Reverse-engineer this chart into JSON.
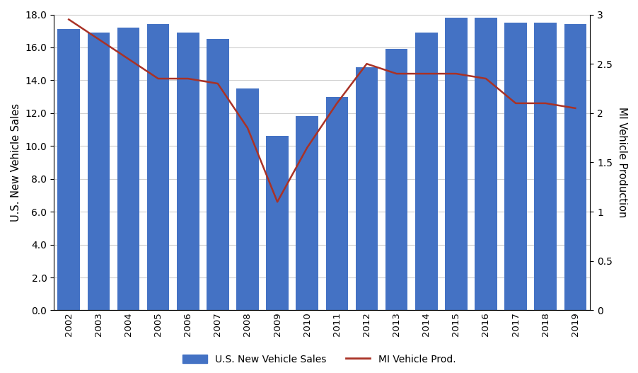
{
  "years": [
    "2002",
    "2003",
    "2004",
    "2005",
    "2006",
    "2007",
    "2008",
    "2009",
    "2010",
    "2011",
    "2012",
    "2013",
    "2014",
    "2015",
    "2016",
    "2017",
    "2018",
    "2019"
  ],
  "us_sales": [
    17.1,
    16.9,
    17.2,
    17.4,
    16.9,
    16.5,
    13.5,
    10.6,
    11.8,
    13.0,
    14.8,
    15.9,
    16.9,
    17.8,
    17.8,
    17.5,
    17.5,
    17.4
  ],
  "mi_prod": [
    2.95,
    2.75,
    2.55,
    2.35,
    2.35,
    2.3,
    1.85,
    1.1,
    1.65,
    2.1,
    2.5,
    2.4,
    2.4,
    2.4,
    2.35,
    2.1,
    2.1,
    2.05
  ],
  "bar_color": "#4472C4",
  "line_color": "#A93226",
  "ylabel_left": "U.S. New Vehicle Sales",
  "ylabel_right": "MI Vehicle Production",
  "ylim_left": [
    0,
    18.0
  ],
  "ylim_right": [
    0,
    3.0
  ],
  "yticks_left": [
    0.0,
    2.0,
    4.0,
    6.0,
    8.0,
    10.0,
    12.0,
    14.0,
    16.0,
    18.0
  ],
  "yticks_right": [
    0,
    0.5,
    1.0,
    1.5,
    2.0,
    2.5,
    3.0
  ],
  "legend_bar_label": "U.S. New Vehicle Sales",
  "legend_line_label": "MI Vehicle Prod.",
  "background_color": "#ffffff",
  "grid_color": "#d0d0d0",
  "fig_width": 9.02,
  "fig_height": 5.27,
  "dpi": 100
}
